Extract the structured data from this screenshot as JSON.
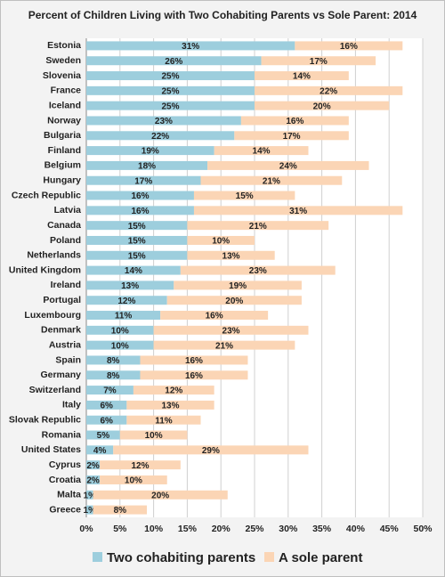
{
  "chart_data": {
    "type": "stacked-barh",
    "title": "Percent of Children Living with Two Cohabiting Parents vs Sole Parent: 2014",
    "categories": [
      "Estonia",
      "Sweden",
      "Slovenia",
      "France",
      "Iceland",
      "Norway",
      "Bulgaria",
      "Finland",
      "Belgium",
      "Hungary",
      "Czech Republic",
      "Latvia",
      "Canada",
      "Poland",
      "Netherlands",
      "United Kingdom",
      "Ireland",
      "Portugal",
      "Luxembourg",
      "Denmark",
      "Austria",
      "Spain",
      "Germany",
      "Switzerland",
      "Italy",
      "Slovak Republic",
      "Romania",
      "United States",
      "Cyprus",
      "Croatia",
      "Malta",
      "Greece"
    ],
    "series": [
      {
        "name": "Two cohabiting parents",
        "color": "#9dcedd",
        "values": [
          31,
          26,
          25,
          25,
          25,
          23,
          22,
          19,
          18,
          17,
          16,
          16,
          15,
          15,
          15,
          14,
          13,
          12,
          11,
          10,
          10,
          8,
          8,
          7,
          6,
          6,
          5,
          4,
          2,
          2,
          1,
          1
        ],
        "value_labels": [
          "31%",
          "26%",
          "25%",
          "25%",
          "25%",
          "23%",
          "22%",
          "19%",
          "18%",
          "17%",
          "16%",
          "16%",
          "15%",
          "15%",
          "15%",
          "14%",
          "13%",
          "12%",
          "11%",
          "10%",
          "10%",
          "8%",
          "8%",
          "7%",
          "6%",
          "6%",
          "5%",
          "4%",
          "2%",
          "2%",
          "1%",
          "1%"
        ]
      },
      {
        "name": "A sole parent",
        "color": "#fbd5b5",
        "values": [
          16,
          17,
          14,
          22,
          20,
          16,
          17,
          14,
          24,
          21,
          15,
          31,
          21,
          10,
          13,
          23,
          19,
          20,
          16,
          23,
          21,
          16,
          16,
          12,
          13,
          11,
          10,
          29,
          12,
          10,
          20,
          8
        ],
        "value_labels": [
          "16%",
          "17%",
          "14%",
          "22%",
          "20%",
          "16%",
          "17%",
          "14%",
          "24%",
          "21%",
          "15%",
          "31%",
          "21%",
          "10%",
          "13%",
          "23%",
          "19%",
          "20%",
          "16%",
          "23%",
          "21%",
          "16%",
          "16%",
          "12%",
          "13%",
          "11%",
          "10%",
          "29%",
          "12%",
          "10%",
          "20%",
          "8%"
        ]
      }
    ],
    "xlim": [
      0,
      50
    ],
    "xticks": [
      {
        "value": 0,
        "label": "0%"
      },
      {
        "value": 5,
        "label": "5%"
      },
      {
        "value": 10,
        "label": "10%"
      },
      {
        "value": 15,
        "label": "15%"
      },
      {
        "value": 20,
        "label": "20%"
      },
      {
        "value": 25,
        "label": "25%"
      },
      {
        "value": 30,
        "label": "30%"
      },
      {
        "value": 35,
        "label": "35%"
      },
      {
        "value": 40,
        "label": "40%"
      },
      {
        "value": 45,
        "label": "45%"
      },
      {
        "value": 50,
        "label": "50%"
      }
    ],
    "grid": true,
    "legend": "bottom"
  }
}
